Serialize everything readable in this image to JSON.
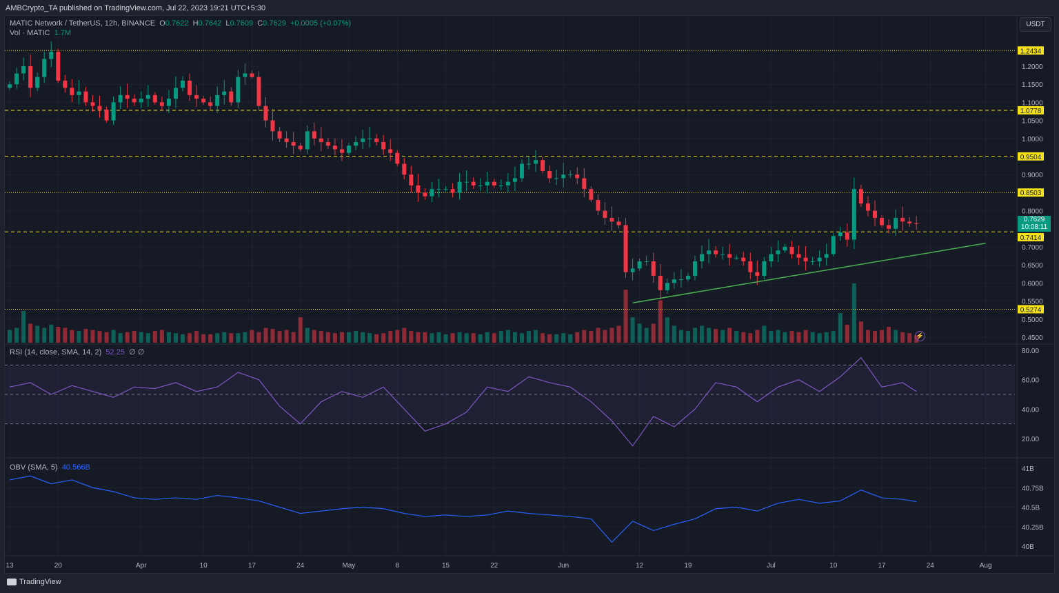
{
  "publish_line": "AMBCrypto_TA published on TradingView.com, Jul 22, 2023 19:21 UTC+5:30",
  "legend": {
    "symbol": "MATIC Network / TetherUS, 12h, BINANCE",
    "o_label": "O",
    "o": "0.7622",
    "h_label": "H",
    "h": "0.7642",
    "l_label": "L",
    "l": "0.7609",
    "c_label": "C",
    "c": "0.7629",
    "change": "+0.0005 (+0.07%)",
    "vol_label": "Vol · MATIC",
    "vol": "1.7M",
    "rsi_label": "RSI (14, close, SMA, 14, 2)",
    "rsi_value": "52.25",
    "rsi_extra": "∅ ∅",
    "obv_label": "OBV (SMA, 5)",
    "obv_value": "40.566B"
  },
  "currency_button": "USDT",
  "last_price": {
    "price": "0.7629",
    "countdown": "10:08:11"
  },
  "footer_brand": "TradingView",
  "colors": {
    "up": "#089981",
    "down": "#f23645",
    "level": "#f5e11a",
    "trend": "#4caf50",
    "rsi": "#7e57c2",
    "obv": "#2962ff"
  },
  "chart_data": [
    {
      "type": "candlestick",
      "title": "MATIC Network / TetherUS, 12h, BINANCE",
      "start_date": "2023-03-13",
      "x_unit": "day",
      "close": [
        1.15,
        1.18,
        1.2,
        1.14,
        1.17,
        1.22,
        1.24,
        1.16,
        1.14,
        1.12,
        1.13,
        1.1,
        1.09,
        1.08,
        1.05,
        1.1,
        1.12,
        1.11,
        1.1,
        1.11,
        1.12,
        1.1,
        1.09,
        1.11,
        1.14,
        1.16,
        1.12,
        1.11,
        1.1,
        1.09,
        1.12,
        1.13,
        1.1,
        1.17,
        1.18,
        1.17,
        1.09,
        1.05,
        1.02,
        1.0,
        0.99,
        0.98,
        0.97,
        1.02,
        1.0,
        0.99,
        0.98,
        0.97,
        0.96,
        0.98,
        0.99,
        1.0,
        1.0,
        0.99,
        0.97,
        0.96,
        0.93,
        0.9,
        0.87,
        0.85,
        0.84,
        0.86,
        0.86,
        0.86,
        0.85,
        0.88,
        0.88,
        0.87,
        0.87,
        0.88,
        0.87,
        0.87,
        0.88,
        0.89,
        0.93,
        0.93,
        0.94,
        0.91,
        0.89,
        0.89,
        0.9,
        0.9,
        0.89,
        0.86,
        0.83,
        0.8,
        0.78,
        0.77,
        0.76,
        0.63,
        0.64,
        0.66,
        0.66,
        0.62,
        0.58,
        0.6,
        0.61,
        0.61,
        0.62,
        0.66,
        0.68,
        0.69,
        0.68,
        0.68,
        0.67,
        0.67,
        0.66,
        0.63,
        0.62,
        0.66,
        0.68,
        0.69,
        0.7,
        0.68,
        0.67,
        0.66,
        0.66,
        0.67,
        0.68,
        0.73,
        0.74,
        0.72,
        0.86,
        0.82,
        0.8,
        0.78,
        0.76,
        0.75,
        0.78,
        0.77,
        0.765,
        0.763
      ],
      "volume_m": [
        60,
        70,
        150,
        90,
        80,
        70,
        85,
        75,
        70,
        60,
        55,
        65,
        60,
        55,
        50,
        60,
        45,
        50,
        55,
        50,
        45,
        55,
        60,
        50,
        45,
        40,
        45,
        55,
        40,
        40,
        45,
        50,
        45,
        45,
        50,
        60,
        50,
        70,
        65,
        55,
        60,
        50,
        120,
        70,
        60,
        55,
        50,
        45,
        50,
        50,
        55,
        50,
        45,
        40,
        45,
        55,
        60,
        70,
        55,
        50,
        50,
        45,
        50,
        40,
        45,
        50,
        45,
        45,
        40,
        50,
        45,
        55,
        60,
        50,
        45,
        55,
        60,
        45,
        40,
        40,
        45,
        40,
        50,
        60,
        55,
        70,
        60,
        70,
        80,
        250,
        120,
        90,
        70,
        90,
        200,
        120,
        80,
        60,
        55,
        70,
        80,
        70,
        65,
        60,
        70,
        55,
        50,
        45,
        60,
        80,
        55,
        60,
        50,
        55,
        50,
        60,
        50,
        45,
        50,
        55,
        140,
        85,
        280,
        100,
        60,
        55,
        60,
        75,
        60,
        50,
        45,
        35
      ],
      "ylim": [
        0.43,
        1.28
      ],
      "y_ticks": [
        "1.2000",
        "1.1500",
        "1.1000",
        "1.0500",
        "1.0000",
        "0.9000",
        "0.8000",
        "0.7000",
        "0.6500",
        "0.6000",
        "0.5500",
        "0.5000",
        "0.4500"
      ],
      "levels": [
        {
          "price": "1.2434",
          "style": "dotted"
        },
        {
          "price": "1.0778",
          "style": "dashed"
        },
        {
          "price": "0.9504",
          "style": "dashed"
        },
        {
          "price": "0.8503",
          "style": "dotted"
        },
        {
          "price": "0.7414",
          "style": "dashed"
        },
        {
          "price": "0.5274",
          "style": "dotted"
        }
      ],
      "trendline": {
        "from": {
          "day": 90,
          "price": 0.545
        },
        "to": {
          "day": 141,
          "price": 0.71
        }
      },
      "x_ticks": [
        {
          "label": "13",
          "day": 0
        },
        {
          "label": "20",
          "day": 7
        },
        {
          "label": "Apr",
          "day": 19
        },
        {
          "label": "10",
          "day": 28
        },
        {
          "label": "17",
          "day": 35
        },
        {
          "label": "24",
          "day": 42
        },
        {
          "label": "May",
          "day": 49
        },
        {
          "label": "8",
          "day": 56
        },
        {
          "label": "15",
          "day": 63
        },
        {
          "label": "22",
          "day": 70
        },
        {
          "label": "Jun",
          "day": 80
        },
        {
          "label": "12",
          "day": 91
        },
        {
          "label": "19",
          "day": 98
        },
        {
          "label": "Jul",
          "day": 110
        },
        {
          "label": "10",
          "day": 119
        },
        {
          "label": "17",
          "day": 126
        },
        {
          "label": "24",
          "day": 133
        },
        {
          "label": "Aug",
          "day": 141
        }
      ]
    },
    {
      "type": "line",
      "title": "RSI (14, close, SMA, 14, 2)",
      "x_step_days": 3,
      "values": [
        55,
        58,
        50,
        56,
        52,
        48,
        55,
        54,
        58,
        52,
        55,
        65,
        60,
        42,
        30,
        45,
        52,
        48,
        55,
        40,
        25,
        30,
        38,
        55,
        52,
        62,
        58,
        55,
        45,
        32,
        15,
        35,
        28,
        40,
        58,
        55,
        45,
        55,
        60,
        52,
        62,
        75,
        55,
        58,
        52
      ],
      "ylim": [
        10,
        85
      ],
      "y_ticks": [
        "80.00",
        "60.00",
        "40.00",
        "20.00"
      ],
      "bands": [
        30,
        50,
        70
      ]
    },
    {
      "type": "line",
      "title": "OBV (SMA, 5)",
      "x_step_days": 3,
      "values_b": [
        40.85,
        40.9,
        40.8,
        40.85,
        40.75,
        40.7,
        40.62,
        40.6,
        40.62,
        40.6,
        40.65,
        40.62,
        40.58,
        40.5,
        40.42,
        40.45,
        40.48,
        40.5,
        40.48,
        40.42,
        40.38,
        40.4,
        40.38,
        40.4,
        40.45,
        40.42,
        40.4,
        40.38,
        40.35,
        40.05,
        40.32,
        40.2,
        40.28,
        40.35,
        40.48,
        40.5,
        40.45,
        40.55,
        40.6,
        40.55,
        40.58,
        40.72,
        40.62,
        40.6,
        40.57
      ],
      "y_ticks": [
        "41B",
        "40.75B",
        "40.5B",
        "40.25B",
        "40B"
      ]
    }
  ]
}
